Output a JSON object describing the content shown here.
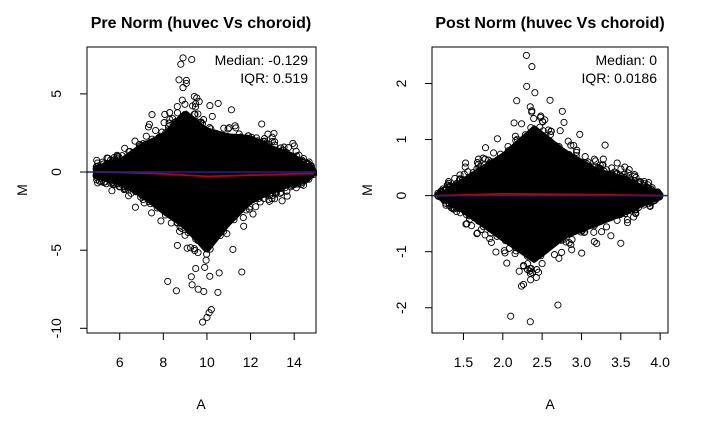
{
  "chart_data": [
    {
      "type": "scatter",
      "title": "Pre Norm (huvec Vs choroid)",
      "xlabel": "A",
      "ylabel": "M",
      "xlim": [
        4.5,
        15.0
      ],
      "ylim": [
        -10.3,
        8.0
      ],
      "x_ticks": [
        "6",
        "8",
        "10",
        "12",
        "14"
      ],
      "y_ticks": [
        "-10",
        "-5",
        "0",
        "5"
      ],
      "annotation": [
        "Median: -0.129",
        "IQR: 0.519"
      ],
      "point_color": "#000000",
      "series": [
        {
          "name": "",
          "style": "points",
          "x": [
            4.9,
            6.0,
            7.0,
            8.0,
            8.6,
            9.0,
            10.0,
            11.0,
            12.0,
            13.0,
            14.0,
            14.9
          ],
          "y_upper": [
            0.8,
            1.6,
            3.4,
            4.6,
            6.3,
            7.3,
            5.2,
            4.5,
            4.3,
            3.1,
            2.2,
            0.3
          ],
          "y_lower": [
            -0.8,
            -1.6,
            -3.0,
            -5.0,
            -6.0,
            -6.8,
            -9.6,
            -6.4,
            -3.8,
            -2.5,
            -1.6,
            -0.3
          ]
        },
        {
          "name": "",
          "style": "line",
          "color": "#c00000",
          "x": [
            4.9,
            6.0,
            8.0,
            10.0,
            12.0,
            14.0,
            14.9
          ],
          "y": [
            0.0,
            -0.02,
            -0.12,
            -0.28,
            -0.2,
            -0.12,
            -0.1
          ]
        },
        {
          "name": "",
          "style": "hline",
          "color": "#1f1fa0",
          "y": 0
        }
      ],
      "outliers": [
        [
          9.8,
          -9.6
        ],
        [
          10.0,
          -9.3
        ],
        [
          10.1,
          -9.0
        ],
        [
          10.2,
          -8.8
        ],
        [
          10.5,
          -7.7
        ],
        [
          9.6,
          -7.5
        ],
        [
          8.6,
          -7.6
        ],
        [
          8.2,
          -7.0
        ],
        [
          11.6,
          -6.4
        ],
        [
          8.9,
          7.3
        ],
        [
          9.3,
          7.2
        ],
        [
          8.8,
          6.9
        ]
      ]
    },
    {
      "type": "scatter",
      "title": "Post Norm (huvec Vs choroid)",
      "xlabel": "A",
      "ylabel": "M",
      "xlim": [
        1.1,
        4.1
      ],
      "ylim": [
        -2.45,
        2.65
      ],
      "x_ticks": [
        "1.5",
        "2.0",
        "2.5",
        "3.0",
        "3.5",
        "4.0"
      ],
      "y_ticks": [
        "-2",
        "-1",
        "0",
        "1",
        "2"
      ],
      "annotation": [
        "Median: 0",
        "IQR: 0.0186"
      ],
      "point_color": "#000000",
      "series": [
        {
          "name": "",
          "style": "points",
          "x": [
            1.17,
            1.5,
            2.0,
            2.4,
            2.8,
            3.2,
            3.6,
            4.0
          ],
          "y_upper": [
            0.05,
            0.6,
            1.4,
            2.3,
            1.5,
            0.9,
            0.6,
            0.05
          ],
          "y_lower": [
            -0.05,
            -0.6,
            -1.5,
            -2.2,
            -1.4,
            -1.0,
            -0.6,
            -0.05
          ]
        },
        {
          "name": "",
          "style": "line",
          "color": "#c00000",
          "x": [
            1.17,
            2.0,
            3.0,
            4.0
          ],
          "y": [
            0.0,
            0.03,
            0.02,
            0.0
          ]
        },
        {
          "name": "",
          "style": "hline",
          "color": "#1f1fa0",
          "y": 0
        }
      ],
      "outliers": [
        [
          2.3,
          2.5
        ],
        [
          2.37,
          2.3
        ],
        [
          2.35,
          -2.25
        ],
        [
          2.1,
          -2.15
        ],
        [
          2.6,
          1.7
        ],
        [
          2.7,
          -1.95
        ],
        [
          3.5,
          -0.85
        ],
        [
          3.3,
          0.9
        ]
      ]
    }
  ]
}
